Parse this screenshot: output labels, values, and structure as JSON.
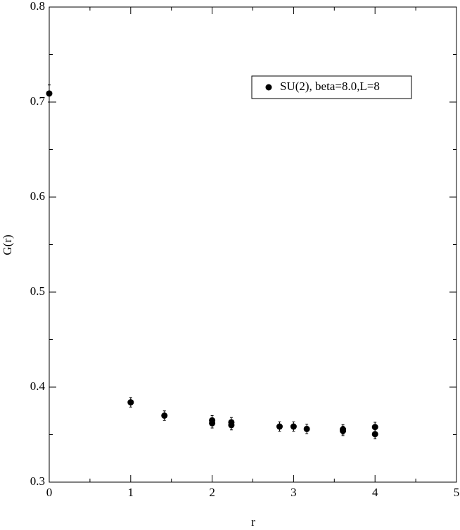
{
  "chart_data": {
    "type": "scatter",
    "xlabel": "r",
    "ylabel": "G(r)",
    "xlim": [
      0,
      5
    ],
    "ylim": [
      0.3,
      0.8
    ],
    "xticks": [
      0,
      1,
      2,
      3,
      4,
      5
    ],
    "yticks": [
      0.3,
      0.4,
      0.5,
      0.6,
      0.7,
      0.8
    ],
    "xminorticks": [
      0.5,
      1.5,
      2.5,
      3.5,
      4.5
    ],
    "yminorticks": [
      0.35,
      0.45,
      0.55,
      0.65,
      0.75
    ],
    "legend": "upper right",
    "series": [
      {
        "name": "SU(2), beta=8.0,L=8",
        "color": "#000000",
        "x": [
          0,
          1,
          1.414,
          2,
          2,
          2.236,
          2.236,
          2.828,
          3,
          3.162,
          3.606,
          3.606,
          4,
          4
        ],
        "values": [
          0.709,
          0.384,
          0.37,
          0.365,
          0.362,
          0.363,
          0.36,
          0.3585,
          0.3585,
          0.356,
          0.3555,
          0.354,
          0.358,
          0.3505
        ],
        "errors": [
          0.009,
          0.005,
          0.005,
          0.005,
          0.005,
          0.005,
          0.005,
          0.005,
          0.005,
          0.005,
          0.005,
          0.005,
          0.005,
          0.005
        ]
      }
    ]
  }
}
